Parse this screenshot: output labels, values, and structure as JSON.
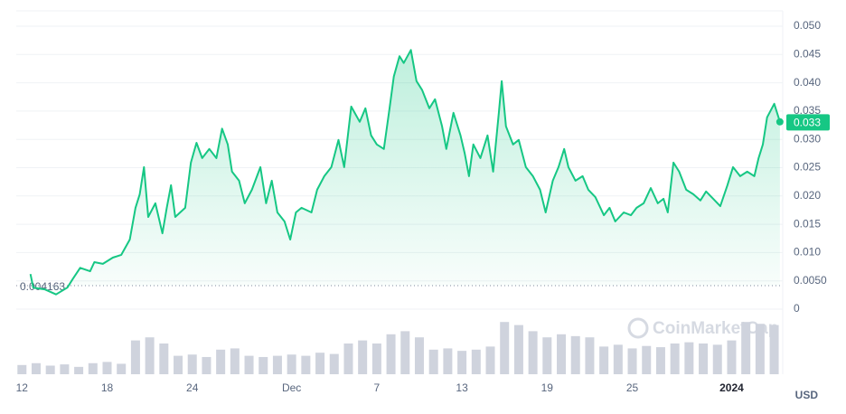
{
  "chart_data": {
    "type": "line",
    "x": [
      0.6,
      0.8,
      1.6,
      2.4,
      3.2,
      3.6,
      4.1,
      4.8,
      5.1,
      5.7,
      6.4,
      7.0,
      7.6,
      8.0,
      8.3,
      8.6,
      8.9,
      9.4,
      9.9,
      10.2,
      10.5,
      10.8,
      11.5,
      11.9,
      12.3,
      12.7,
      13.2,
      13.7,
      14.1,
      14.5,
      14.8,
      15.3,
      15.7,
      16.2,
      16.8,
      17.2,
      17.6,
      18.0,
      18.5,
      18.9,
      19.3,
      19.7,
      20.4,
      20.8,
      21.3,
      21.8,
      22.3,
      22.7,
      23.2,
      23.8,
      24.2,
      24.6,
      25.0,
      25.5,
      25.9,
      26.2,
      26.6,
      26.9,
      27.4,
      27.8,
      28.2,
      28.7,
      29.1,
      29.6,
      29.9,
      30.4,
      30.9,
      31.2,
      31.5,
      31.8,
      32.3,
      32.8,
      33.2,
      33.6,
      33.8,
      34.1,
      34.6,
      35.0,
      35.5,
      36.0,
      36.5,
      36.9,
      37.4,
      37.8,
      38.2,
      38.5,
      39.0,
      39.5,
      39.9,
      40.4,
      41.0,
      41.4,
      41.8,
      42.4,
      42.9,
      43.3,
      43.8,
      44.3,
      44.8,
      45.2,
      45.5,
      45.9,
      46.3,
      46.8,
      47.3,
      47.8,
      48.2,
      48.7,
      49.2,
      49.7,
      50.1,
      50.6,
      51.1,
      51.6,
      51.9,
      52.2,
      52.5,
      53.0,
      53.4
    ],
    "series": [
      {
        "color": "#16c784",
        "values": [
          0.0062,
          0.0038,
          0.0035,
          0.0026,
          0.0038,
          0.0054,
          0.0073,
          0.0067,
          0.0083,
          0.008,
          0.0091,
          0.0096,
          0.0123,
          0.0179,
          0.0203,
          0.0251,
          0.0163,
          0.0187,
          0.0134,
          0.0179,
          0.0219,
          0.0163,
          0.0179,
          0.0259,
          0.0294,
          0.0267,
          0.0283,
          0.0267,
          0.0319,
          0.0291,
          0.0243,
          0.0227,
          0.0187,
          0.0211,
          0.0251,
          0.0187,
          0.0227,
          0.0171,
          0.0155,
          0.0123,
          0.0171,
          0.0179,
          0.0171,
          0.0211,
          0.0235,
          0.0251,
          0.0299,
          0.0251,
          0.0358,
          0.0331,
          0.0355,
          0.0307,
          0.0291,
          0.0283,
          0.0355,
          0.0411,
          0.0447,
          0.0435,
          0.0458,
          0.0403,
          0.0387,
          0.0355,
          0.0371,
          0.0323,
          0.0283,
          0.0347,
          0.0307,
          0.0275,
          0.0235,
          0.0291,
          0.0267,
          0.0307,
          0.0243,
          0.0347,
          0.0403,
          0.0323,
          0.0291,
          0.0299,
          0.0251,
          0.0235,
          0.0211,
          0.0171,
          0.0227,
          0.0251,
          0.0283,
          0.0251,
          0.0227,
          0.0235,
          0.0211,
          0.0198,
          0.0166,
          0.0179,
          0.0155,
          0.0171,
          0.0166,
          0.0179,
          0.0187,
          0.0214,
          0.0187,
          0.0195,
          0.0171,
          0.0259,
          0.0243,
          0.0211,
          0.0203,
          0.0192,
          0.0208,
          0.0195,
          0.0182,
          0.0219,
          0.0251,
          0.0235,
          0.0243,
          0.0235,
          0.0267,
          0.0291,
          0.0339,
          0.0363,
          0.0331
        ]
      }
    ],
    "volume": {
      "color": "#cfd3dd",
      "values": [
        0.15,
        0.18,
        0.14,
        0.16,
        0.12,
        0.18,
        0.2,
        0.17,
        0.55,
        0.6,
        0.5,
        0.3,
        0.32,
        0.28,
        0.4,
        0.42,
        0.3,
        0.28,
        0.3,
        0.32,
        0.3,
        0.35,
        0.33,
        0.5,
        0.55,
        0.5,
        0.65,
        0.7,
        0.6,
        0.4,
        0.42,
        0.38,
        0.4,
        0.45,
        0.85,
        0.8,
        0.7,
        0.6,
        0.65,
        0.62,
        0.6,
        0.45,
        0.48,
        0.42,
        0.46,
        0.44,
        0.5,
        0.52,
        0.5,
        0.48,
        0.55,
        0.85,
        0.82,
        0.8
      ]
    },
    "xlim": [
      -0.4,
      53.6
    ],
    "xticks": [
      {
        "value": 0,
        "label": "12"
      },
      {
        "value": 6,
        "label": "18"
      },
      {
        "value": 12,
        "label": "24"
      },
      {
        "value": 19,
        "label": "Dec"
      },
      {
        "value": 25,
        "label": "7"
      },
      {
        "value": 31,
        "label": "13"
      },
      {
        "value": 37,
        "label": "19"
      },
      {
        "value": 43,
        "label": "25"
      },
      {
        "value": 50,
        "label": "2024"
      }
    ],
    "ylim": [
      0,
      0.05
    ],
    "yticks": [
      0,
      {
        "value": 0.005,
        "label": "0.0050"
      },
      {
        "value": 0.01,
        "label": "0.010"
      },
      0.015,
      {
        "value": 0.02,
        "label": "0.020"
      },
      0.025,
      {
        "value": 0.03,
        "label": "0.030"
      },
      0.035,
      {
        "value": 0.04,
        "label": "0.040"
      },
      0.045,
      {
        "value": 0.05,
        "label": "0.050"
      }
    ],
    "grid": true,
    "baseline": 0.004163,
    "current_price": 0.033,
    "y_axis_unit": "USD",
    "watermark": "CoinMarketCap"
  }
}
